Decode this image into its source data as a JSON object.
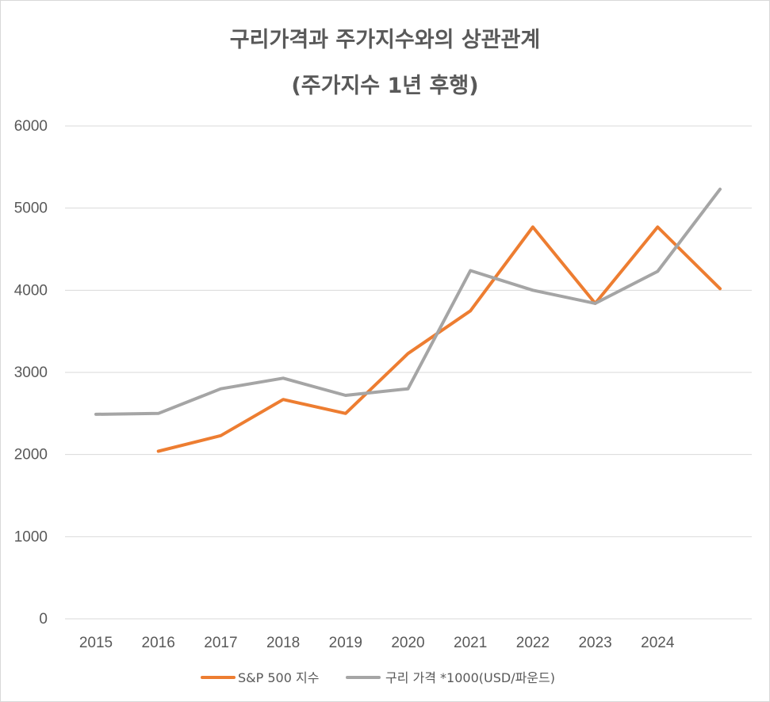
{
  "chart_data": {
    "type": "line",
    "title": "구리가격과 주가지수와의 상관관계",
    "subtitle": "(주가지수 1년 후행)",
    "xlabel": "",
    "ylabel": "",
    "categories": [
      "2015",
      "2016",
      "2017",
      "2018",
      "2019",
      "2020",
      "2021",
      "2022",
      "2023",
      "2024",
      ""
    ],
    "ylim": [
      0,
      6000
    ],
    "yticks": [
      0,
      1000,
      2000,
      3000,
      4000,
      5000,
      6000
    ],
    "grid": true,
    "legend_position": "bottom",
    "series": [
      {
        "name": "S&P 500 지수",
        "color": "#ED7D31",
        "values": [
          null,
          2040,
          2230,
          2670,
          2500,
          3230,
          3750,
          4770,
          3840,
          4770,
          4020
        ]
      },
      {
        "name": "구리 가격 *1000(USD/파운드)",
        "color": "#A5A5A5",
        "values": [
          2490,
          2500,
          2800,
          2930,
          2720,
          2800,
          4240,
          4000,
          3840,
          4230,
          5230
        ]
      }
    ]
  }
}
